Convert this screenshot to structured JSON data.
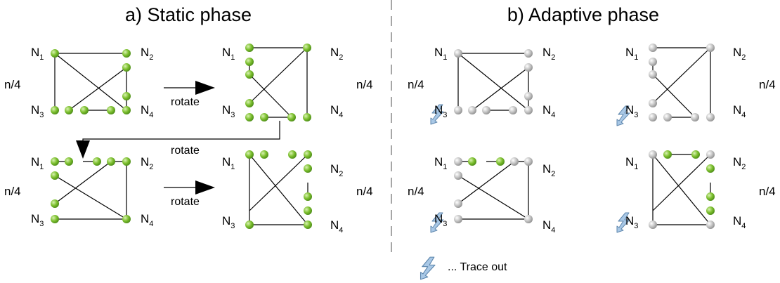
{
  "titles": {
    "static": "a) Static phase",
    "adaptive": "b) Adaptive phase"
  },
  "labels": {
    "rotate": "rotate",
    "n_over_4": "n/4",
    "node_letter": "N",
    "n1_sub": "1",
    "n2_sub": "2",
    "n3_sub": "3",
    "n4_sub": "4"
  },
  "legend": {
    "text": "... Trace out"
  },
  "colors": {
    "active_node": "#7cbf2e",
    "inactive_node": "#b5b5b5",
    "lightning": "#a9c8e6",
    "divider": "#888888"
  }
}
